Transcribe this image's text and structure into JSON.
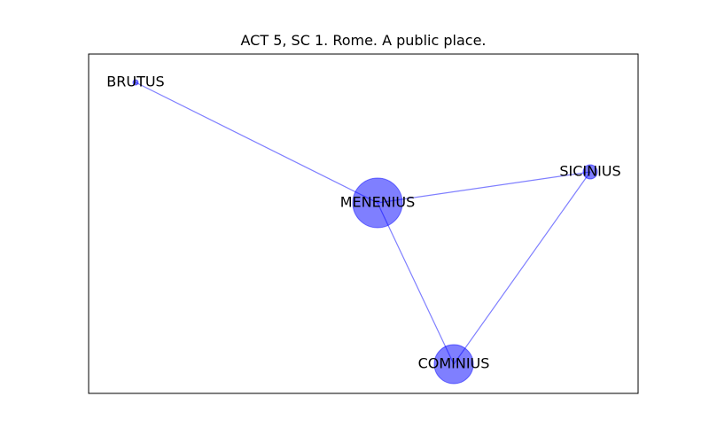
{
  "title": "ACT 5, SC 1. Rome. A public place.",
  "colors": {
    "node": "#0000ff",
    "edge": "#0000ff",
    "frame": "#000000"
  },
  "nodes": [
    {
      "id": "BRUTUS",
      "label": "BRUTUS",
      "size": 1
    },
    {
      "id": "MENENIUS",
      "label": "MENENIUS",
      "size": 9
    },
    {
      "id": "SICINIUS",
      "label": "SICINIUS",
      "size": 2
    },
    {
      "id": "COMINIUS",
      "label": "COMINIUS",
      "size": 6
    }
  ],
  "edges": [
    {
      "source": "BRUTUS",
      "target": "MENENIUS"
    },
    {
      "source": "MENENIUS",
      "target": "SICINIUS"
    },
    {
      "source": "MENENIUS",
      "target": "COMINIUS"
    },
    {
      "source": "SICINIUS",
      "target": "COMINIUS"
    }
  ]
}
